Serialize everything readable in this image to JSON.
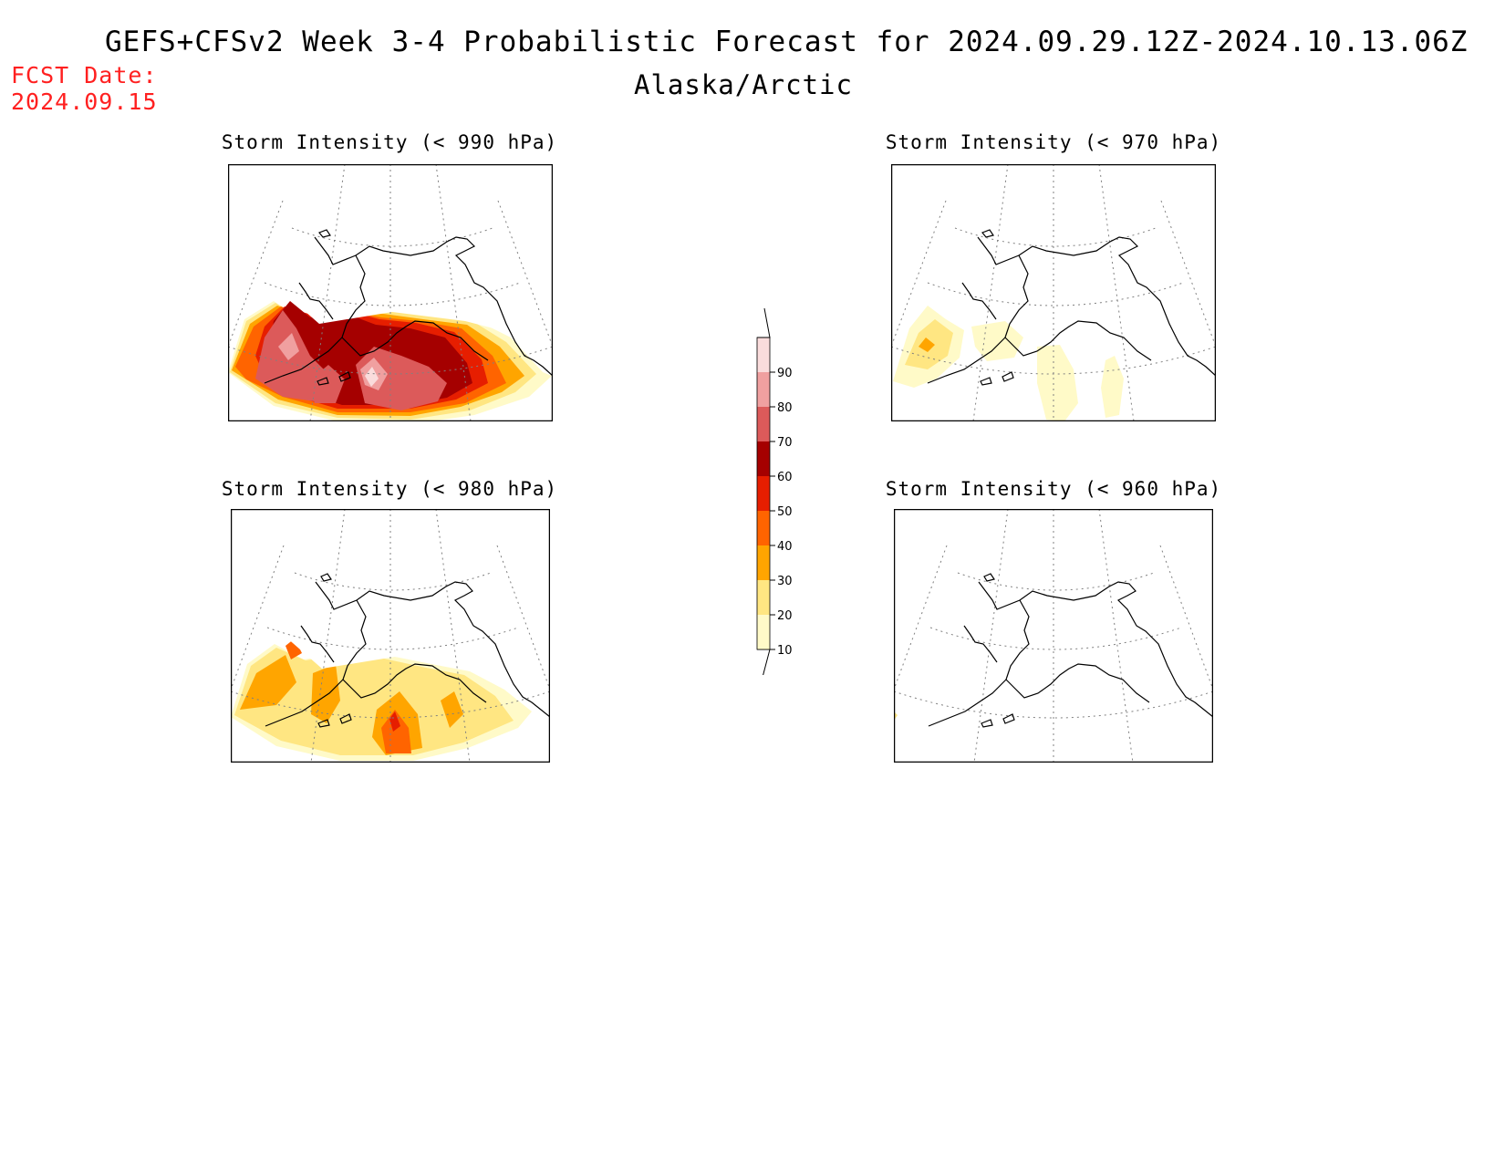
{
  "header": {
    "title": "GEFS+CFSv2 Week 3-4 Probabilistic Forecast for 2024.09.29.12Z-2024.10.13.06Z",
    "region": "Alaska/Arctic",
    "fcst_label": "FCST Date:",
    "fcst_date": "2024.09.15"
  },
  "panels": [
    {
      "title": "Storm Intensity (< 990 hPa)",
      "threshold_hPa": 990
    },
    {
      "title": "Storm Intensity (< 970 hPa)",
      "threshold_hPa": 970
    },
    {
      "title": "Storm Intensity (< 980 hPa)",
      "threshold_hPa": 980
    },
    {
      "title": "Storm Intensity (< 960 hPa)",
      "threshold_hPa": 960
    }
  ],
  "colorbar": {
    "levels": [
      "10",
      "20",
      "30",
      "40",
      "50",
      "60",
      "70",
      "80",
      "90"
    ],
    "colors": [
      "#fffac8",
      "#ffe682",
      "#ffa500",
      "#ff6400",
      "#e61e00",
      "#a50000",
      "#dc5a5a",
      "#f0a0a0",
      "#fadcdc"
    ]
  }
}
